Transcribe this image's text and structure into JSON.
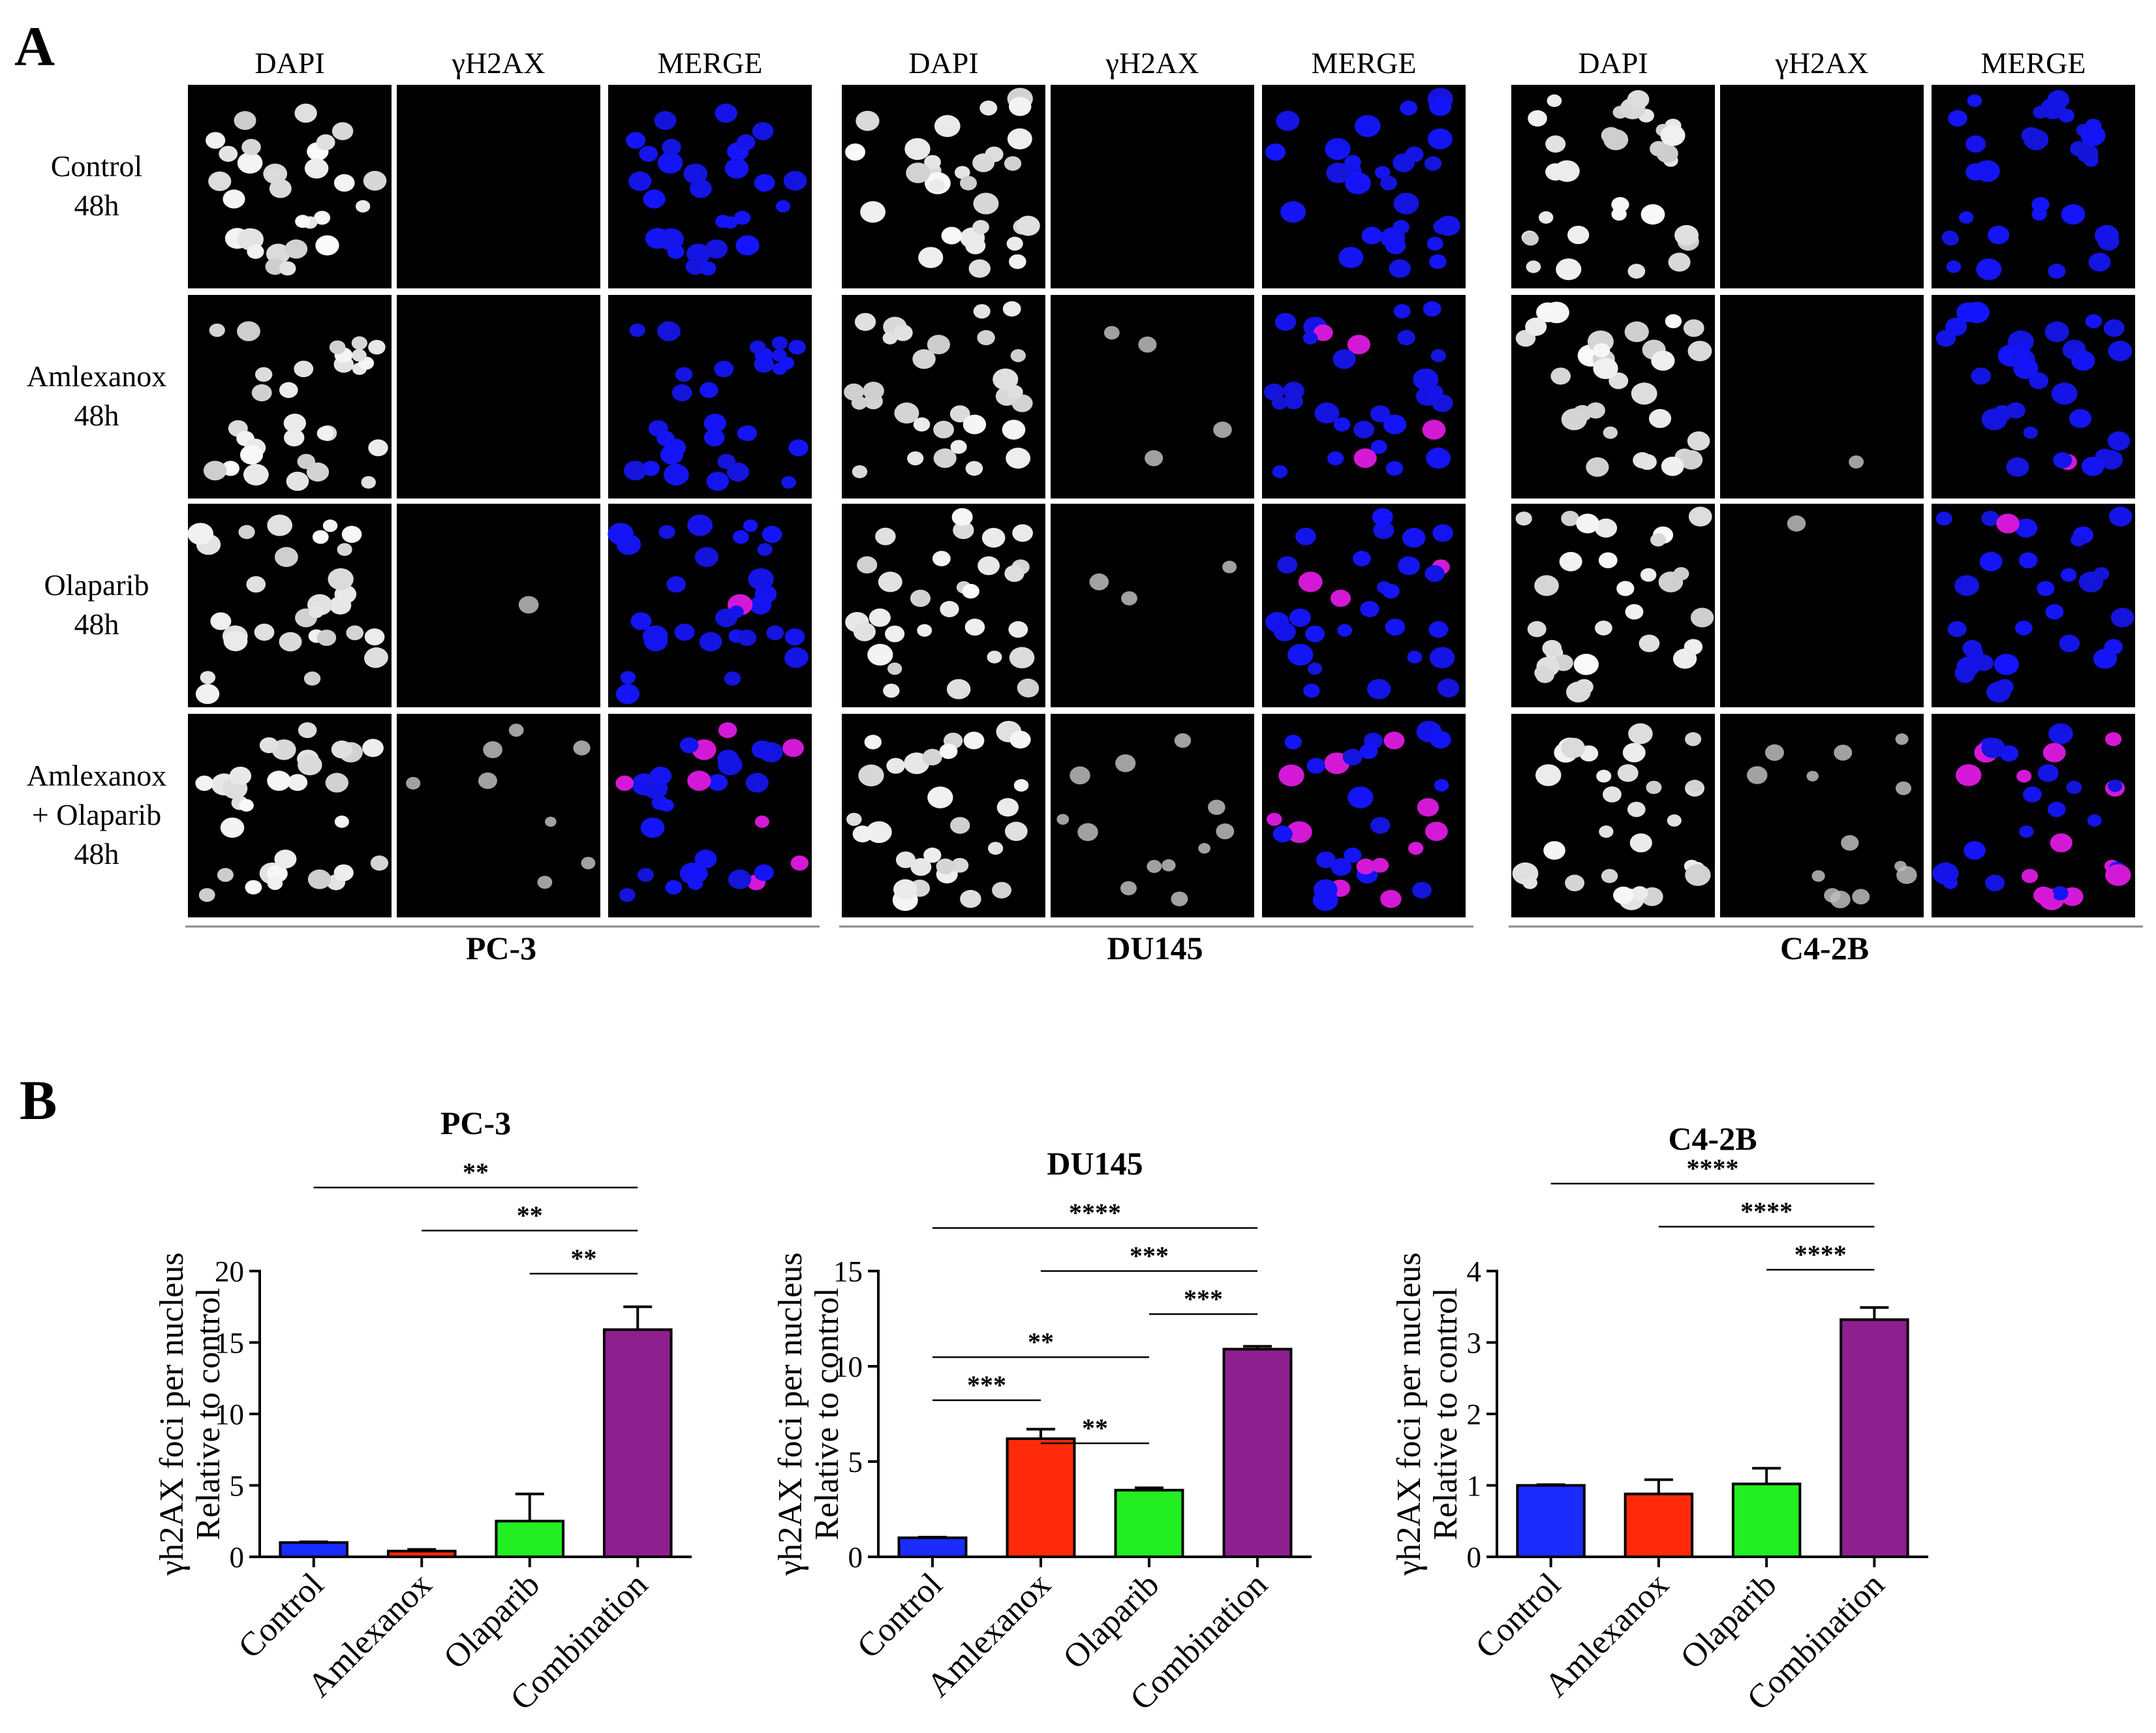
{
  "panel_a": {
    "letter": "A",
    "channels": [
      "DAPI",
      "γH2AX",
      "MERGE"
    ],
    "rows": [
      {
        "lines": [
          "Control",
          "48h"
        ]
      },
      {
        "lines": [
          "Amlexanox",
          "48h"
        ]
      },
      {
        "lines": [
          "Olaparib",
          "48h"
        ]
      },
      {
        "lines": [
          "Amlexanox",
          "+ Olaparib",
          "48h"
        ]
      }
    ],
    "cell_lines": [
      "PC-3",
      "DU145",
      "C4-2B"
    ]
  },
  "panel_b": {
    "letter": "B"
  },
  "colors": {
    "Control": "#1a2cff",
    "Amlexanox": "#ff2a0a",
    "Olaparib": "#22ee22",
    "Combination": "#8e1f8e"
  },
  "chart_data": [
    {
      "type": "bar",
      "title": "PC-3",
      "categories": [
        "Control",
        "Amlexanox",
        "Olaparib",
        "Combination"
      ],
      "values": [
        1.0,
        0.4,
        2.5,
        15.9
      ],
      "errors": [
        0.05,
        0.12,
        1.9,
        1.6
      ],
      "ylabel": [
        "γh2AX foci per nucleus",
        "Relative to control"
      ],
      "ylim": [
        0,
        20
      ],
      "yticks": [
        0,
        5,
        10,
        15,
        20
      ],
      "comparisons": [
        {
          "from": 0,
          "to": 3,
          "label": "**"
        },
        {
          "from": 1,
          "to": 3,
          "label": "**"
        },
        {
          "from": 2,
          "to": 3,
          "label": "**"
        }
      ]
    },
    {
      "type": "bar",
      "title": "DU145",
      "categories": [
        "Control",
        "Amlexanox",
        "Olaparib",
        "Combination"
      ],
      "values": [
        1.0,
        6.2,
        3.5,
        10.9
      ],
      "errors": [
        0.03,
        0.5,
        0.12,
        0.15
      ],
      "ylabel": [
        "γh2AX foci per nucleus",
        "Relative to control"
      ],
      "ylim": [
        0,
        15
      ],
      "yticks": [
        0,
        5,
        10,
        15
      ],
      "comparisons": [
        {
          "from": 0,
          "to": 3,
          "label": "****"
        },
        {
          "from": 1,
          "to": 3,
          "label": "***"
        },
        {
          "from": 2,
          "to": 3,
          "label": "***"
        },
        {
          "from": 0,
          "to": 2,
          "label": "**"
        },
        {
          "from": 0,
          "to": 1,
          "label": "***"
        },
        {
          "from": 1,
          "to": 2,
          "label": "**"
        }
      ]
    },
    {
      "type": "bar",
      "title": "C4-2B",
      "categories": [
        "Control",
        "Amlexanox",
        "Olaparib",
        "Combination"
      ],
      "values": [
        1.0,
        0.88,
        1.02,
        3.32
      ],
      "errors": [
        0.01,
        0.2,
        0.22,
        0.17
      ],
      "ylabel": [
        "γh2AX foci per nucleus",
        "Relative to control"
      ],
      "ylim": [
        0,
        4
      ],
      "yticks": [
        0,
        1,
        2,
        3,
        4
      ],
      "comparisons": [
        {
          "from": 0,
          "to": 3,
          "label": "****"
        },
        {
          "from": 1,
          "to": 3,
          "label": "****"
        },
        {
          "from": 2,
          "to": 3,
          "label": "****"
        }
      ]
    }
  ]
}
